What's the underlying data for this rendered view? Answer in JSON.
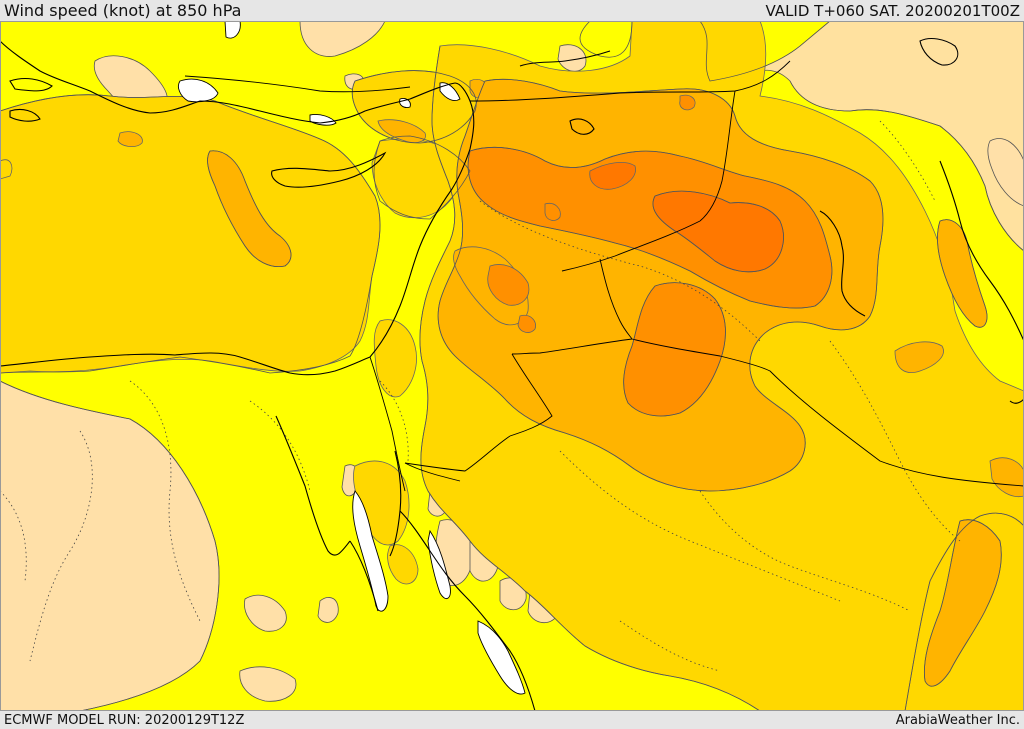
{
  "header": {
    "title": "Wind speed (knot) at 850 hPa",
    "valid": "VALID T+060 SAT. 20200201T00Z"
  },
  "footer": {
    "model_run": "ECMWF MODEL RUN: 20200129T12Z",
    "credit": "ArabiaWeather Inc."
  },
  "colors": {
    "calm": "#ffe0a8",
    "light": "#ffff00",
    "moderate": "#ffd800",
    "fresh": "#ffb400",
    "strong": "#ff9000",
    "very_strong": "#ff7800",
    "water_ice": "#ffffff",
    "coastline": "#000000",
    "border": "#000000"
  }
}
